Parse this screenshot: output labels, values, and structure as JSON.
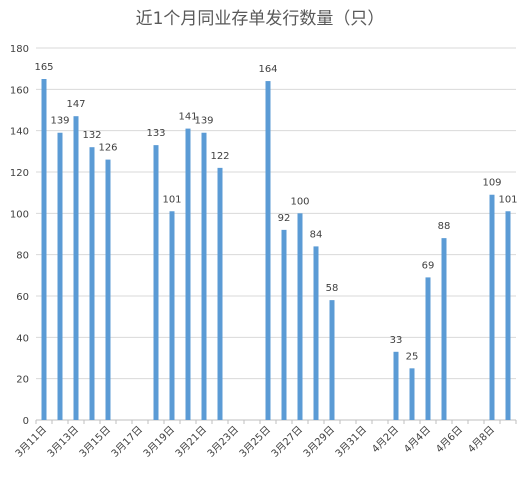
{
  "chart_data": {
    "type": "bar",
    "title": "近1个月同业存单发行数量（只）",
    "xlabel": "",
    "ylabel": "",
    "ylim": [
      0,
      180
    ],
    "yticks": [
      0,
      20,
      40,
      60,
      80,
      100,
      120,
      140,
      160,
      180
    ],
    "grid": true,
    "legend": "none",
    "bar_color": "#5B9BD5",
    "gridline_color": "#D9D9D9",
    "text_color": "#404040",
    "title_color": "#595959",
    "categories": [
      "3月11日",
      "3月12日",
      "3月13日",
      "3月14日",
      "3月15日",
      "3月16日",
      "3月17日",
      "3月18日",
      "3月19日",
      "3月20日",
      "3月21日",
      "3月22日",
      "3月23日",
      "3月24日",
      "3月25日",
      "3月26日",
      "3月27日",
      "3月28日",
      "3月29日",
      "3月30日",
      "3月31日",
      "4月1日",
      "4月2日",
      "4月3日",
      "4月4日",
      "4月5日",
      "4月6日",
      "4月7日",
      "4月8日",
      "4月9日"
    ],
    "x_tick_labels": [
      "3月11日",
      "3月13日",
      "3月15日",
      "3月17日",
      "3月19日",
      "3月21日",
      "3月23日",
      "3月25日",
      "3月27日",
      "3月29日",
      "3月31日",
      "4月2日",
      "4月4日",
      "4月6日",
      "4月8日"
    ],
    "values": [
      165,
      139,
      147,
      132,
      126,
      null,
      null,
      133,
      101,
      141,
      139,
      122,
      null,
      null,
      164,
      92,
      100,
      84,
      58,
      null,
      null,
      null,
      33,
      25,
      69,
      88,
      null,
      null,
      109,
      101
    ]
  }
}
